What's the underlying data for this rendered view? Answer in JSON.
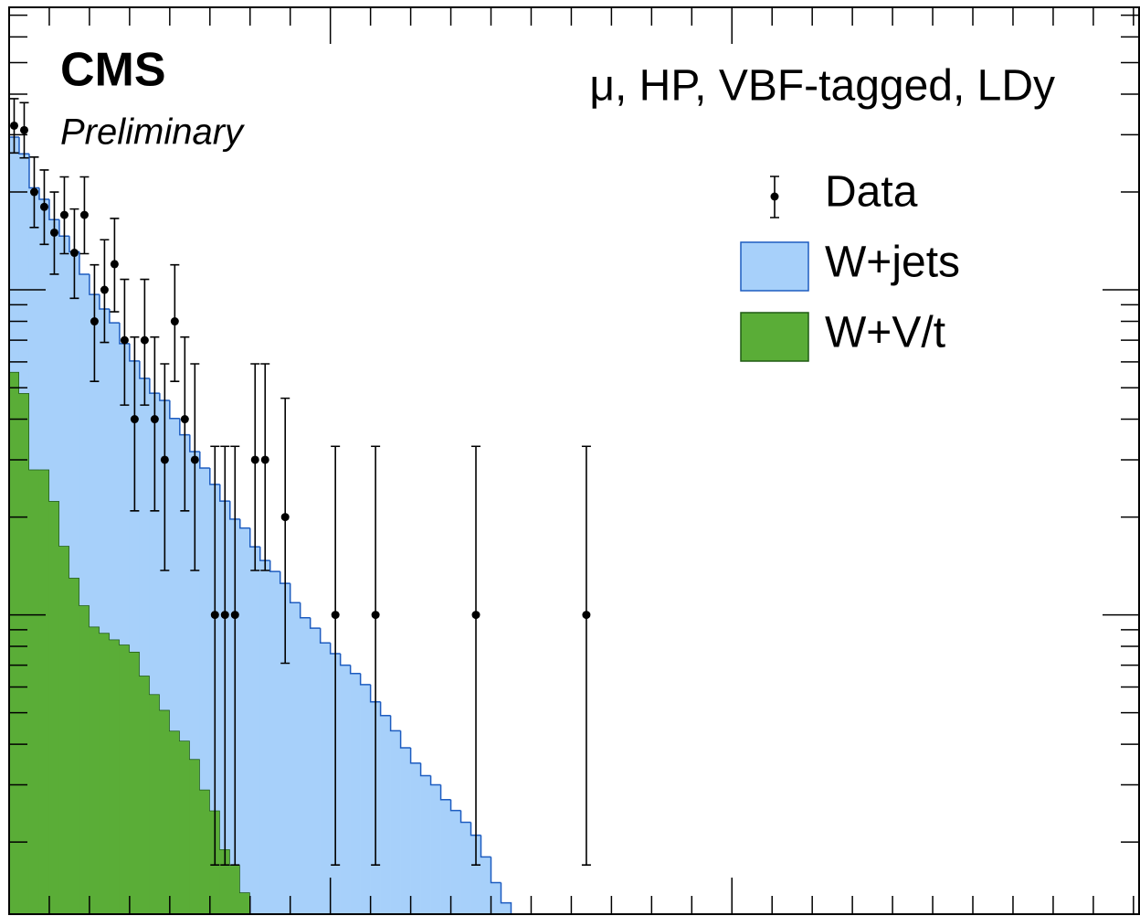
{
  "chart_data": {
    "type": "histogram",
    "stacked": true,
    "log_y": true,
    "cms_label": "CMS",
    "cms_sublabel": "Preliminary",
    "title": "μ, HP, VBF-tagged, LDy",
    "xlim": [
      200,
      3014
    ],
    "ylim": [
      0.12,
      74
    ],
    "xticks": [
      1000,
      2000
    ],
    "x_minor_ticks": [
      300,
      400,
      500,
      600,
      700,
      800,
      900,
      1100,
      1200,
      1300,
      1400,
      1500,
      1600,
      1700,
      1800,
      1900,
      2100,
      2200,
      2300,
      2400,
      2500,
      2600,
      2700,
      2800,
      2900,
      3000
    ],
    "yticks": [
      1,
      10
    ],
    "y_minor_ticks": [
      0.2,
      0.3,
      0.4,
      0.5,
      0.6,
      0.7,
      0.8,
      0.9,
      2,
      3,
      4,
      5,
      6,
      7,
      8,
      9,
      20,
      30,
      40,
      50,
      60,
      70
    ],
    "bins": [
      200,
      225,
      250,
      275,
      300,
      325,
      350,
      375,
      400,
      425,
      450,
      475,
      500,
      525,
      550,
      575,
      600,
      625,
      650,
      675,
      700,
      725,
      750,
      775,
      800,
      825,
      850,
      875,
      900,
      925,
      950,
      975,
      1000,
      1025,
      1050,
      1075,
      1100,
      1125,
      1150,
      1175,
      1200,
      1225,
      1250,
      1275,
      1300,
      1325,
      1350,
      1375,
      1400,
      1425,
      1450
    ],
    "series": [
      {
        "name": "W+V/t",
        "color": "#5aad37",
        "edge_color": "#1f5a14",
        "values": [
          5.59,
          4.81,
          2.8,
          2.8,
          2.24,
          1.63,
          1.3,
          1.07,
          0.92,
          0.88,
          0.84,
          0.81,
          0.77,
          0.65,
          0.57,
          0.51,
          0.44,
          0.41,
          0.36,
          0.29,
          0.25,
          0.19,
          0.17,
          0.14,
          null,
          null,
          null,
          null,
          null,
          null,
          null,
          null,
          null,
          null,
          null,
          null,
          null,
          null,
          null,
          null,
          null,
          null,
          null,
          null,
          null,
          null,
          null,
          null,
          null,
          null
        ]
      },
      {
        "name": "W+jets",
        "color": "#a7d0fa",
        "edge_color": "#1d5cc0",
        "values": [
          23.9,
          21.4,
          17.8,
          16.2,
          14.2,
          13.0,
          11.8,
          10.1,
          8.76,
          7.85,
          7.08,
          6.02,
          5.27,
          4.69,
          4.24,
          4.06,
          3.58,
          3.17,
          2.82,
          2.54,
          2.27,
          2.05,
          1.8,
          1.71,
          1.62,
          1.47,
          1.36,
          1.25,
          1.09,
          0.98,
          0.91,
          0.82,
          0.76,
          0.7,
          0.66,
          0.61,
          0.54,
          0.49,
          0.44,
          0.39,
          0.35,
          0.32,
          0.3,
          0.27,
          0.25,
          0.23,
          0.21,
          0.18,
          0.15,
          0.13
        ]
      }
    ],
    "data": {
      "name": "Data",
      "color": "#000000",
      "x": [
        212.5,
        237.5,
        262.5,
        287.5,
        312.5,
        337.5,
        362.5,
        387.5,
        412.5,
        437.5,
        462.5,
        487.5,
        512.5,
        537.5,
        562.5,
        587.5,
        612.5,
        637.5,
        662.5,
        712.5,
        737.5,
        762.5,
        812.5,
        837.5,
        887.5,
        1012.5,
        1112.5,
        1362.5,
        1637.5
      ],
      "values": [
        32,
        31,
        20,
        18,
        15,
        17,
        13,
        17,
        8,
        10,
        12,
        7,
        4,
        7,
        4,
        3,
        8,
        4,
        3,
        1,
        1,
        1,
        3,
        3,
        2,
        1,
        1,
        1,
        1
      ],
      "errors_low": [
        5.63,
        5.54,
        4.44,
        4.2,
        3.83,
        4.08,
        3.58,
        4.08,
        2.77,
        3.11,
        3.44,
        2.58,
        1.91,
        2.58,
        1.91,
        1.63,
        2.77,
        1.91,
        1.63,
        0.83,
        0.83,
        0.83,
        1.63,
        1.63,
        1.29,
        0.83,
        0.83,
        0.83,
        0.83
      ],
      "errors_high": [
        6.74,
        6.66,
        5.62,
        5.38,
        5.0,
        5.26,
        4.73,
        5.26,
        3.94,
        4.26,
        4.58,
        3.77,
        3.16,
        3.77,
        3.16,
        2.92,
        3.94,
        3.16,
        2.92,
        2.3,
        2.3,
        2.3,
        2.92,
        2.92,
        2.64,
        2.3,
        2.3,
        2.3,
        2.3
      ]
    }
  }
}
